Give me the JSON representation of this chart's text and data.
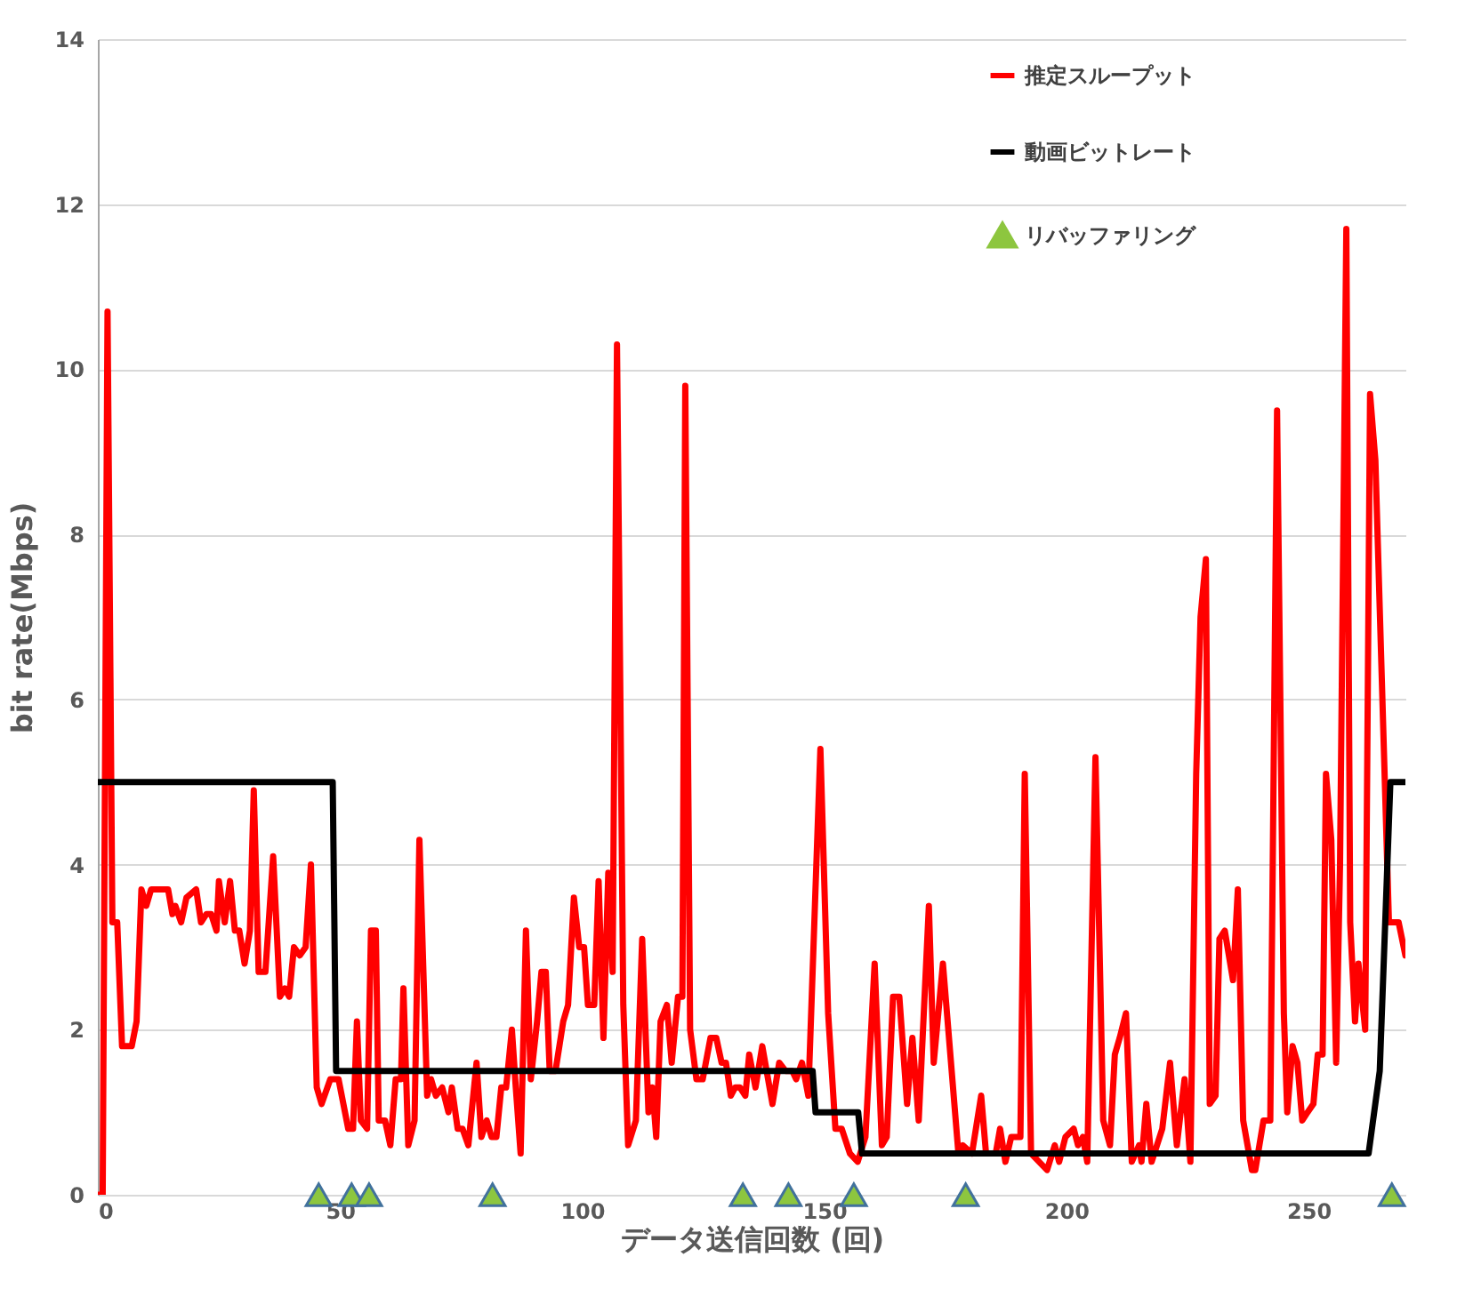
{
  "chart_data": {
    "type": "line",
    "xlabel": "データ送信回数 (回)",
    "ylabel": "bit rate(Mbps)",
    "xlim": [
      0,
      270
    ],
    "xticks": [
      0,
      50,
      100,
      150,
      200,
      250
    ],
    "ylim": [
      0,
      14
    ],
    "yticks": [
      0,
      2,
      4,
      6,
      8,
      10,
      12,
      14
    ],
    "grid": "y",
    "legend": "top right",
    "series": [
      {
        "name": "推定スループット",
        "color": "#ff0000",
        "x": [
          0,
          1,
          2,
          3,
          4,
          5,
          7,
          8,
          9,
          10,
          11,
          12.5,
          14.5,
          15.4,
          16,
          17.2,
          18.3,
          20.3,
          21.3,
          22.4,
          23.4,
          24.5,
          25,
          26.2,
          27.3,
          28.3,
          29.2,
          30.3,
          31.4,
          32.2,
          33.2,
          34.6,
          36.2,
          37.6,
          38.6,
          39.5,
          40.5,
          41.7,
          42.9,
          44,
          45.2,
          46.2,
          48,
          49.7,
          51.7,
          52.7,
          53.5,
          54.3,
          55.6,
          56.4,
          57.4,
          58,
          59.3,
          60.4,
          61.5,
          62.6,
          63.1,
          64.1,
          65.4,
          66.4,
          68,
          68.8,
          69.8,
          71.1,
          72.4,
          73.1,
          74.3,
          75.3,
          76.5,
          78.2,
          79.2,
          80.3,
          81.3,
          82.3,
          83.3,
          84.3,
          85.5,
          86.3,
          87.3,
          88.4,
          89.4,
          90.7,
          91.6,
          92.5,
          93.3,
          94.5,
          96.1,
          97.1,
          98.3,
          99.4,
          100.4,
          101.2,
          102.5,
          103.4,
          104.4,
          105.4,
          106.3,
          107.2,
          108.5,
          109.5,
          111.1,
          112.4,
          113.7,
          114.5,
          115.3,
          116.2,
          117.5,
          118.5,
          119.8,
          120.7,
          121.3,
          122.3,
          123.6,
          124.9,
          126.5,
          127.7,
          128.8,
          129.7,
          130.7,
          131.6,
          132.6,
          133.7,
          134.5,
          135.8,
          137.2,
          139.3,
          140.7,
          142,
          143.4,
          144.2,
          145.4,
          146.7,
          149.2,
          150.8,
          152.3,
          153.6,
          155.3,
          156.9,
          158.5,
          160.4,
          161.9,
          162.9,
          164.2,
          165.5,
          167.1,
          168.2,
          169.5,
          171.6,
          172.6,
          174.5,
          177.7,
          178.6,
          180.5,
          182.4,
          183.4,
          185.4,
          186.3,
          187.4,
          188.6,
          190.5,
          191.4,
          192.7,
          196,
          197.6,
          198.5,
          199.8,
          201.5,
          202.4,
          203.4,
          204.3,
          206,
          207.6,
          209,
          210,
          211,
          212.3,
          213.5,
          215,
          215.5,
          216.5,
          217.6,
          219.8,
          221.4,
          222.8,
          224.4,
          225.6,
          226.8,
          227.7,
          228.8,
          229.6,
          230.8,
          231.6,
          232.7,
          234.4,
          235.4,
          236.5,
          238.3,
          239,
          240.7,
          242.1,
          243.5,
          244.9,
          245.6,
          246.7,
          247.7,
          248.7,
          249.8,
          251,
          251.9,
          252.9,
          253.6,
          254.7,
          255.7,
          256.5,
          257.8,
          258.6,
          259.6,
          260.3,
          261.7,
          262.7,
          263.8,
          266.6,
          268.6,
          270
        ],
        "values": [
          0,
          0,
          10.7,
          3.3,
          3.3,
          1.8,
          1.8,
          2.1,
          3.7,
          3.5,
          3.7,
          3.7,
          3.7,
          3.4,
          3.5,
          3.3,
          3.6,
          3.7,
          3.3,
          3.4,
          3.4,
          3.2,
          3.8,
          3.3,
          3.8,
          3.2,
          3.2,
          2.8,
          3.2,
          4.9,
          2.7,
          2.7,
          4.1,
          2.4,
          2.5,
          2.4,
          3.0,
          2.9,
          3.0,
          4.0,
          1.3,
          1.1,
          1.4,
          1.4,
          0.8,
          0.8,
          2.1,
          0.9,
          0.8,
          3.2,
          3.2,
          0.9,
          0.9,
          0.6,
          1.4,
          1.4,
          2.5,
          0.6,
          0.9,
          4.3,
          1.2,
          1.4,
          1.2,
          1.3,
          1.0,
          1.3,
          0.8,
          0.8,
          0.6,
          1.6,
          0.7,
          0.9,
          0.7,
          0.7,
          1.3,
          1.3,
          2.0,
          1.3,
          0.5,
          3.2,
          1.4,
          2.1,
          2.7,
          2.7,
          1.5,
          1.5,
          2.1,
          2.3,
          3.6,
          3.0,
          3.0,
          2.3,
          2.3,
          3.8,
          1.9,
          3.9,
          2.7,
          10.3,
          2.3,
          0.6,
          0.9,
          3.1,
          1.0,
          1.3,
          0.7,
          2.1,
          2.3,
          1.6,
          2.4,
          2.4,
          9.8,
          2.0,
          1.4,
          1.4,
          1.9,
          1.9,
          1.6,
          1.6,
          1.2,
          1.3,
          1.3,
          1.2,
          1.7,
          1.3,
          1.8,
          1.1,
          1.6,
          1.5,
          1.5,
          1.4,
          1.6,
          1.2,
          5.4,
          2.2,
          0.8,
          0.8,
          0.5,
          0.4,
          0.7,
          2.8,
          0.6,
          0.7,
          2.4,
          2.4,
          1.1,
          1.9,
          0.9,
          3.5,
          1.6,
          2.8,
          0.5,
          0.6,
          0.5,
          1.2,
          0.5,
          0.5,
          0.8,
          0.4,
          0.7,
          0.7,
          5.1,
          0.5,
          0.3,
          0.6,
          0.4,
          0.7,
          0.8,
          0.6,
          0.7,
          0.4,
          5.3,
          0.9,
          0.6,
          1.7,
          1.9,
          2.2,
          0.4,
          0.6,
          0.4,
          1.1,
          0.4,
          0.8,
          1.6,
          0.6,
          1.4,
          0.4,
          5.1,
          7.0,
          7.7,
          1.1,
          1.2,
          3.1,
          3.2,
          2.6,
          3.7,
          0.9,
          0.3,
          0.3,
          0.9,
          0.9,
          9.5,
          2.2,
          1.0,
          1.8,
          1.6,
          0.9,
          1.0,
          1.1,
          1.7,
          1.7,
          5.1,
          4.3,
          1.6,
          4.0,
          11.7,
          3.3,
          2.1,
          2.8,
          2.0,
          9.7,
          8.9,
          3.3,
          3.3,
          2.9
        ]
      },
      {
        "name": "動画ビットレート",
        "color": "#000000",
        "x": [
          0,
          48.5,
          49.2,
          147.6,
          148.2,
          157,
          157.8,
          262.4,
          264.7,
          266.9,
          270
        ],
        "values": [
          5,
          5,
          1.5,
          1.5,
          1,
          1,
          0.5,
          0.5,
          1.5,
          5,
          5
        ]
      },
      {
        "name": "リバッファリング",
        "type": "scatter",
        "marker": "triangle",
        "color": "#8dc63f",
        "x": [
          45.6,
          52.4,
          56,
          81.5,
          133.2,
          142.6,
          156.1,
          179.2,
          267.2
        ],
        "values": [
          0,
          0,
          0,
          0,
          0,
          0,
          0,
          0,
          0
        ]
      }
    ]
  }
}
